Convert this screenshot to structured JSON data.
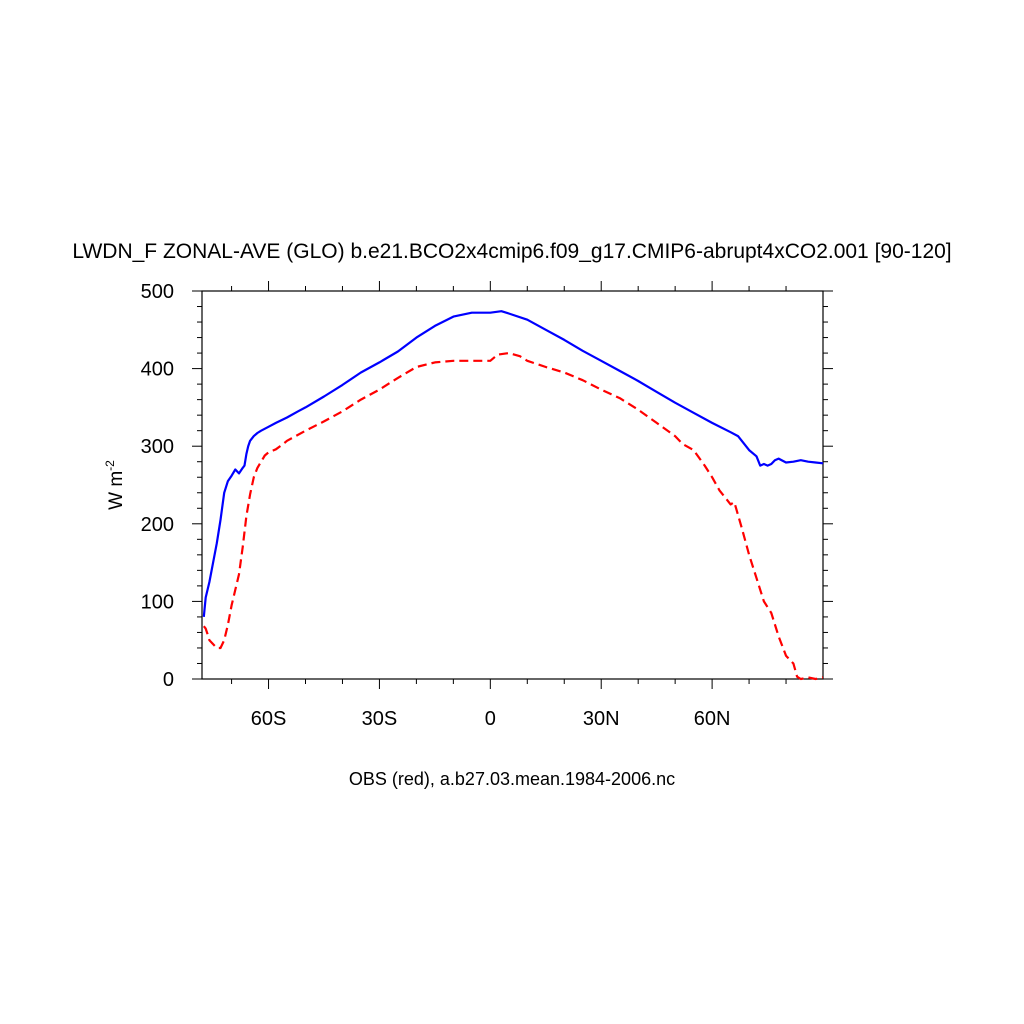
{
  "chart_data": {
    "type": "line",
    "title": "LWDN_F ZONAL-AVE (GLO) b.e21.BCO2x4cmip6.f09_g17.CMIP6-abrupt4xCO2.001 [90-120]",
    "ylabel": "W m",
    "ylabel_exponent": "-2",
    "caption": "OBS (red), a.b27.03.mean.1984-2006.nc",
    "xlim": [
      -78,
      90
    ],
    "ylim": [
      0,
      500
    ],
    "x_ticks": [
      {
        "value": -60,
        "label": "60S"
      },
      {
        "value": -30,
        "label": "30S"
      },
      {
        "value": 0,
        "label": "0"
      },
      {
        "value": 30,
        "label": "30N"
      },
      {
        "value": 60,
        "label": "60N"
      }
    ],
    "y_ticks": [
      {
        "value": 0,
        "label": "0"
      },
      {
        "value": 100,
        "label": "100"
      },
      {
        "value": 200,
        "label": "200"
      },
      {
        "value": 300,
        "label": "300"
      },
      {
        "value": 400,
        "label": "400"
      },
      {
        "value": 500,
        "label": "500"
      }
    ],
    "grid": false,
    "series": [
      {
        "color": "#0000ff",
        "dash": "solid",
        "x": [
          -77.5,
          -77,
          -76,
          -75,
          -74,
          -73,
          -72,
          -71,
          -70,
          -69,
          -68,
          -67,
          -66.5,
          -66,
          -65.5,
          -65,
          -64,
          -63,
          -62,
          -60,
          -58,
          -55,
          -52,
          -50,
          -45,
          -40,
          -35,
          -30,
          -25,
          -20,
          -15,
          -10,
          -5,
          0,
          3,
          5,
          10,
          15,
          20,
          25,
          30,
          35,
          40,
          45,
          50,
          55,
          60,
          65,
          67,
          70,
          72,
          73,
          74,
          75,
          76,
          77,
          78,
          80,
          82,
          84,
          86,
          88,
          90
        ],
        "y": [
          80,
          105,
          125,
          150,
          175,
          205,
          240,
          255,
          262,
          270,
          265,
          272,
          275,
          290,
          300,
          307,
          313,
          317,
          320,
          325,
          330,
          337,
          345,
          350,
          364,
          379,
          395,
          408,
          422,
          440,
          455,
          467,
          472,
          472,
          474,
          471,
          463,
          450,
          437,
          423,
          410,
          397,
          384,
          370,
          356,
          343,
          330,
          318,
          313,
          295,
          287,
          275,
          277,
          275,
          277,
          282,
          284,
          279,
          280,
          282,
          280,
          279,
          278
        ]
      },
      {
        "color": "#ff0000",
        "dash": "dashed",
        "x": [
          -77.5,
          -77,
          -76.5,
          -76,
          -75,
          -74,
          -73,
          -72,
          -71,
          -70,
          -69,
          -68,
          -67,
          -66,
          -65,
          -64,
          -63,
          -62,
          -61,
          -60,
          -58,
          -56,
          -55,
          -50,
          -45,
          -40,
          -35,
          -30,
          -25,
          -20,
          -15,
          -10,
          -5,
          0,
          2,
          5,
          8,
          10,
          15,
          20,
          25,
          30,
          35,
          40,
          45,
          50,
          52,
          55,
          58,
          60,
          62,
          65,
          66,
          68,
          70,
          72,
          74,
          76,
          78,
          80,
          82,
          83,
          84,
          86,
          88,
          90
        ],
        "y": [
          68,
          65,
          58,
          50,
          45,
          40,
          40,
          50,
          70,
          95,
          115,
          135,
          170,
          210,
          238,
          260,
          272,
          280,
          288,
          292,
          296,
          303,
          307,
          320,
          332,
          345,
          360,
          373,
          388,
          402,
          408,
          410,
          410,
          410,
          418,
          420,
          416,
          410,
          402,
          395,
          385,
          373,
          362,
          347,
          330,
          313,
          303,
          295,
          275,
          260,
          243,
          225,
          228,
          195,
          160,
          130,
          100,
          85,
          55,
          30,
          20,
          3,
          0,
          2,
          0,
          2
        ]
      }
    ]
  }
}
